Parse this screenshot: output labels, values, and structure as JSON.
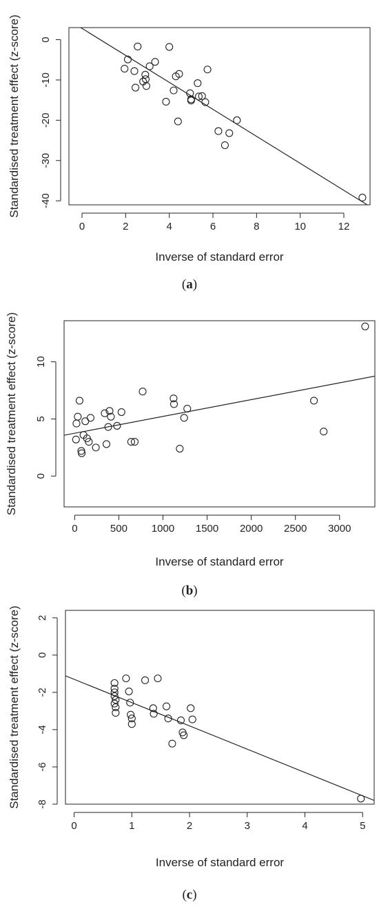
{
  "chart_data": [
    {
      "type": "scatter",
      "panel_label": "a",
      "xlabel": "Inverse of standard error",
      "ylabel": "Standardised treatment effect (z-score)",
      "xlim": [
        -0.6,
        13.2
      ],
      "ylim": [
        -41,
        3
      ],
      "xticks": [
        0,
        2,
        4,
        6,
        8,
        10,
        12
      ],
      "yticks": [
        0,
        -10,
        -20,
        -30,
        -40
      ],
      "grid": false,
      "legend": "none",
      "regression_line": {
        "intercept": 2.8,
        "slope": -3.35
      },
      "points": [
        {
          "x": 1.95,
          "y": -7.2
        },
        {
          "x": 2.1,
          "y": -4.9
        },
        {
          "x": 2.4,
          "y": -7.8
        },
        {
          "x": 2.45,
          "y": -11.9
        },
        {
          "x": 2.55,
          "y": -1.7
        },
        {
          "x": 2.8,
          "y": -10.4
        },
        {
          "x": 2.9,
          "y": -8.7
        },
        {
          "x": 2.92,
          "y": -9.8
        },
        {
          "x": 2.95,
          "y": -11.5
        },
        {
          "x": 3.1,
          "y": -6.6
        },
        {
          "x": 3.35,
          "y": -5.5
        },
        {
          "x": 3.85,
          "y": -15.4
        },
        {
          "x": 4.0,
          "y": -1.8
        },
        {
          "x": 4.2,
          "y": -12.6
        },
        {
          "x": 4.3,
          "y": -9.1
        },
        {
          "x": 4.45,
          "y": -8.5
        },
        {
          "x": 4.4,
          "y": -20.3
        },
        {
          "x": 4.95,
          "y": -13.3
        },
        {
          "x": 5.0,
          "y": -14.8
        },
        {
          "x": 5.0,
          "y": -15.1
        },
        {
          "x": 5.3,
          "y": -10.8
        },
        {
          "x": 5.35,
          "y": -14.1
        },
        {
          "x": 5.5,
          "y": -14.0
        },
        {
          "x": 5.65,
          "y": -15.5
        },
        {
          "x": 5.75,
          "y": -7.4
        },
        {
          "x": 6.25,
          "y": -22.7
        },
        {
          "x": 6.55,
          "y": -26.2
        },
        {
          "x": 6.75,
          "y": -23.2
        },
        {
          "x": 7.1,
          "y": -20.0
        },
        {
          "x": 12.85,
          "y": -39.2
        }
      ]
    },
    {
      "type": "scatter",
      "panel_label": "b",
      "xlabel": "Inverse of standard error",
      "ylabel": "Standardised treatment effect (z-score)",
      "xlim": [
        -120,
        3400
      ],
      "ylim": [
        -2.7,
        13.6
      ],
      "xticks": [
        0,
        500,
        1000,
        1500,
        2000,
        2500,
        3000
      ],
      "yticks": [
        0,
        5,
        10
      ],
      "grid": false,
      "legend": "none",
      "regression_line": {
        "intercept": 3.75,
        "slope": 0.00147
      },
      "points": [
        {
          "x": 15,
          "y": 3.2
        },
        {
          "x": 20,
          "y": 4.6
        },
        {
          "x": 35,
          "y": 5.2
        },
        {
          "x": 55,
          "y": 6.6
        },
        {
          "x": 75,
          "y": 2.2
        },
        {
          "x": 80,
          "y": 2.0
        },
        {
          "x": 100,
          "y": 3.6
        },
        {
          "x": 120,
          "y": 4.8
        },
        {
          "x": 140,
          "y": 3.3
        },
        {
          "x": 160,
          "y": 3.0
        },
        {
          "x": 180,
          "y": 5.1
        },
        {
          "x": 240,
          "y": 2.5
        },
        {
          "x": 340,
          "y": 5.5
        },
        {
          "x": 360,
          "y": 2.8
        },
        {
          "x": 380,
          "y": 4.3
        },
        {
          "x": 395,
          "y": 5.7
        },
        {
          "x": 410,
          "y": 5.2
        },
        {
          "x": 480,
          "y": 4.4
        },
        {
          "x": 530,
          "y": 5.6
        },
        {
          "x": 640,
          "y": 3.0
        },
        {
          "x": 680,
          "y": 3.0
        },
        {
          "x": 770,
          "y": 7.4
        },
        {
          "x": 1120,
          "y": 6.8
        },
        {
          "x": 1125,
          "y": 6.3
        },
        {
          "x": 1190,
          "y": 2.4
        },
        {
          "x": 1240,
          "y": 5.1
        },
        {
          "x": 1275,
          "y": 5.9
        },
        {
          "x": 2710,
          "y": 6.6
        },
        {
          "x": 2820,
          "y": 3.9
        },
        {
          "x": 3290,
          "y": 13.1
        }
      ]
    },
    {
      "type": "scatter",
      "panel_label": "c",
      "xlabel": "Inverse of standard error",
      "ylabel": "Standardised treatment effect (z-score)",
      "xlim": [
        -0.15,
        5.2
      ],
      "ylim": [
        -8.0,
        2.4
      ],
      "xticks": [
        0,
        1,
        2,
        3,
        4,
        5
      ],
      "yticks": [
        2,
        0,
        -2,
        -4,
        -6,
        -8
      ],
      "grid": false,
      "legend": "none",
      "regression_line": {
        "intercept": -1.3,
        "slope": -1.25
      },
      "points": [
        {
          "x": 0.7,
          "y": -1.5
        },
        {
          "x": 0.7,
          "y": -1.8
        },
        {
          "x": 0.7,
          "y": -2.0
        },
        {
          "x": 0.7,
          "y": -2.2
        },
        {
          "x": 0.72,
          "y": -2.4
        },
        {
          "x": 0.7,
          "y": -2.6
        },
        {
          "x": 0.72,
          "y": -2.8
        },
        {
          "x": 0.72,
          "y": -3.1
        },
        {
          "x": 0.9,
          "y": -1.25
        },
        {
          "x": 0.95,
          "y": -1.95
        },
        {
          "x": 0.97,
          "y": -2.55
        },
        {
          "x": 0.98,
          "y": -3.2
        },
        {
          "x": 1.0,
          "y": -3.4
        },
        {
          "x": 1.0,
          "y": -3.7
        },
        {
          "x": 1.23,
          "y": -1.35
        },
        {
          "x": 1.37,
          "y": -2.85
        },
        {
          "x": 1.38,
          "y": -3.15
        },
        {
          "x": 1.45,
          "y": -1.25
        },
        {
          "x": 1.6,
          "y": -2.75
        },
        {
          "x": 1.63,
          "y": -3.4
        },
        {
          "x": 1.7,
          "y": -4.75
        },
        {
          "x": 1.85,
          "y": -3.5
        },
        {
          "x": 1.88,
          "y": -4.15
        },
        {
          "x": 1.9,
          "y": -4.3
        },
        {
          "x": 2.02,
          "y": -2.85
        },
        {
          "x": 2.05,
          "y": -3.45
        },
        {
          "x": 4.97,
          "y": -7.7
        }
      ]
    }
  ]
}
